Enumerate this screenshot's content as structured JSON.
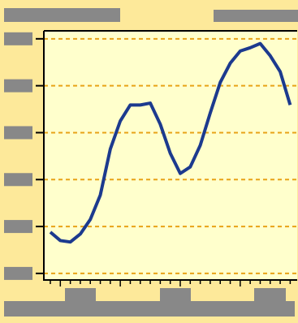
{
  "chart_data": {
    "type": "line",
    "x": [
      0,
      1,
      2,
      3,
      4,
      5,
      6,
      7,
      8,
      9,
      10,
      11,
      12,
      13,
      14,
      15,
      16,
      17,
      18,
      19,
      20,
      21,
      22,
      23,
      24
    ],
    "values": [
      0.88,
      0.7,
      0.67,
      0.84,
      1.15,
      1.67,
      2.65,
      3.25,
      3.59,
      3.59,
      3.63,
      3.18,
      2.56,
      2.13,
      2.27,
      2.73,
      3.42,
      4.07,
      4.48,
      4.74,
      4.81,
      4.9,
      4.64,
      4.3,
      3.59
    ],
    "color": "#1c3a8e",
    "xlim": [
      -0.65,
      24.7
    ],
    "xticks": [
      0,
      1,
      2,
      3,
      4,
      5,
      6,
      7,
      8,
      9,
      10,
      11,
      12,
      13,
      14,
      15,
      16,
      17,
      18,
      19,
      20,
      21,
      22,
      23,
      24
    ],
    "ylim": [
      -0.14,
      5.17
    ],
    "yticks": [
      0,
      1,
      2,
      3,
      4,
      5
    ],
    "grid": true,
    "grid_color": "#e8a317"
  }
}
